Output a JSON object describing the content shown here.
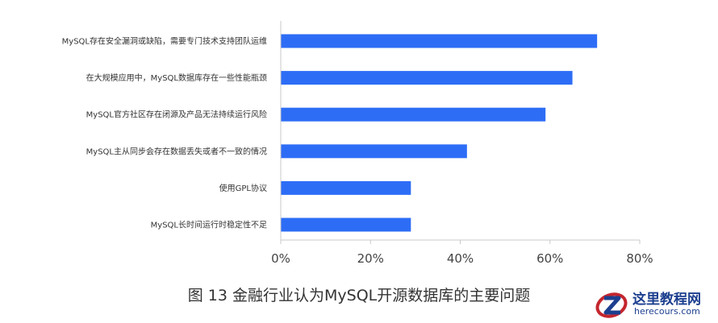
{
  "chart_data": {
    "type": "bar",
    "orientation": "horizontal",
    "categories": [
      "MySQL存在安全漏洞或缺陷，需要专门技术支持团队运维",
      "在大规模应用中，MySQL数据库存在一些性能瓶颈",
      "MySQL官方社区存在闭源及产品无法持续运行风险",
      "MySQL主从同步会存在数据丢失或者不一致的情况",
      "使用GPL协议",
      "MySQL长时间运行时稳定性不足"
    ],
    "values": [
      70.5,
      65,
      59,
      41.5,
      29,
      29
    ],
    "xlim": [
      0,
      80
    ],
    "xticks": [
      "0%",
      "20%",
      "40%",
      "60%",
      "80%"
    ],
    "xtick_values": [
      0,
      20,
      40,
      60,
      80
    ],
    "grid": false,
    "bar_color": "#2d6df6",
    "title": "图 13 金融行业认为MySQL开源数据库的主要问题"
  },
  "watermark": {
    "name": "这里教程网",
    "url": "herecours.com",
    "colors": {
      "ring": "#c4262e",
      "text": "#1c3f8f"
    }
  }
}
